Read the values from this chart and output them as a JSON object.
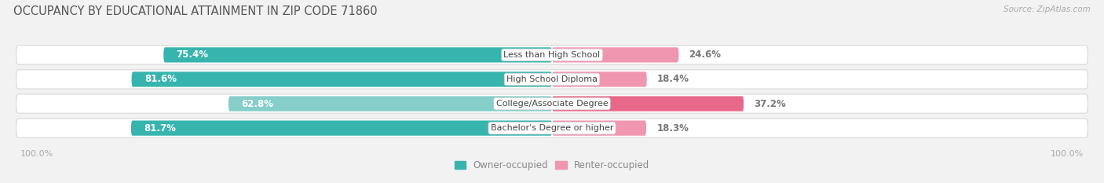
{
  "title": "OCCUPANCY BY EDUCATIONAL ATTAINMENT IN ZIP CODE 71860",
  "source": "Source: ZipAtlas.com",
  "categories": [
    "Less than High School",
    "High School Diploma",
    "College/Associate Degree",
    "Bachelor's Degree or higher"
  ],
  "owner_pct": [
    75.4,
    81.6,
    62.8,
    81.7
  ],
  "renter_pct": [
    24.6,
    18.4,
    37.2,
    18.3
  ],
  "owner_colors": [
    "#38b4ae",
    "#38b4ae",
    "#85ceca",
    "#38b4ae"
  ],
  "renter_colors": [
    "#f096b0",
    "#f096b0",
    "#e8688a",
    "#f096b0"
  ],
  "label_color_owner": "#ffffff",
  "label_color_renter": "#777777",
  "bg_color": "#f2f2f2",
  "track_color": "#e0e0e0",
  "title_color": "#555555",
  "axis_label_color": "#aaaaaa",
  "legend_label_color": "#888888",
  "category_label_color": "#444444",
  "source_color": "#aaaaaa",
  "figsize": [
    14.06,
    2.33
  ],
  "dpi": 100
}
